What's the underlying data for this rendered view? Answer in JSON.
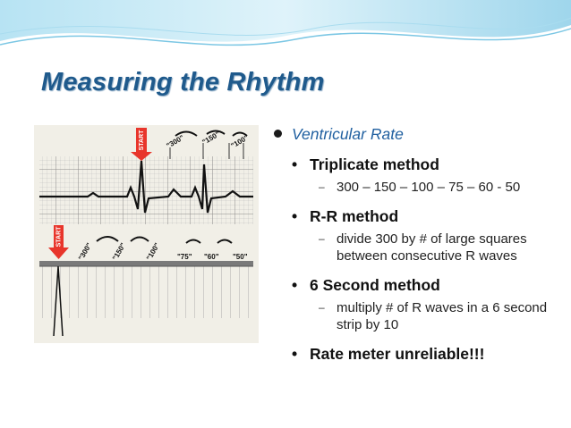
{
  "title": "Measuring the Rhythm",
  "level1": {
    "text": "Ventricular Rate"
  },
  "methods": [
    {
      "name": "Triplicate method",
      "detail": "300 – 150 – 100 – 75 – 60 - 50"
    },
    {
      "name": "R-R method",
      "detail": "divide 300 by # of large squares between consecutive R waves"
    },
    {
      "name": "6 Second method",
      "detail": "multiply # of R waves in a 6 second strip by 10"
    },
    {
      "name": "Rate meter unreliable!!!",
      "detail": ""
    }
  ],
  "figure": {
    "top_start_label": "START",
    "top_labels": [
      "\"300\"",
      "\"150\"",
      "\"100\""
    ],
    "bottom_start_label": "START",
    "bottom_labels": [
      "\"300\"",
      "\"150\"",
      "\"100\"",
      "\"75\"",
      "\"60\"",
      "\"50\""
    ],
    "grid_color": "#9b9b9b",
    "start_color": "#e8352b"
  },
  "colors": {
    "title": "#1f5a8c",
    "accent": "#2160a0",
    "deco": "#8fd0e8"
  }
}
